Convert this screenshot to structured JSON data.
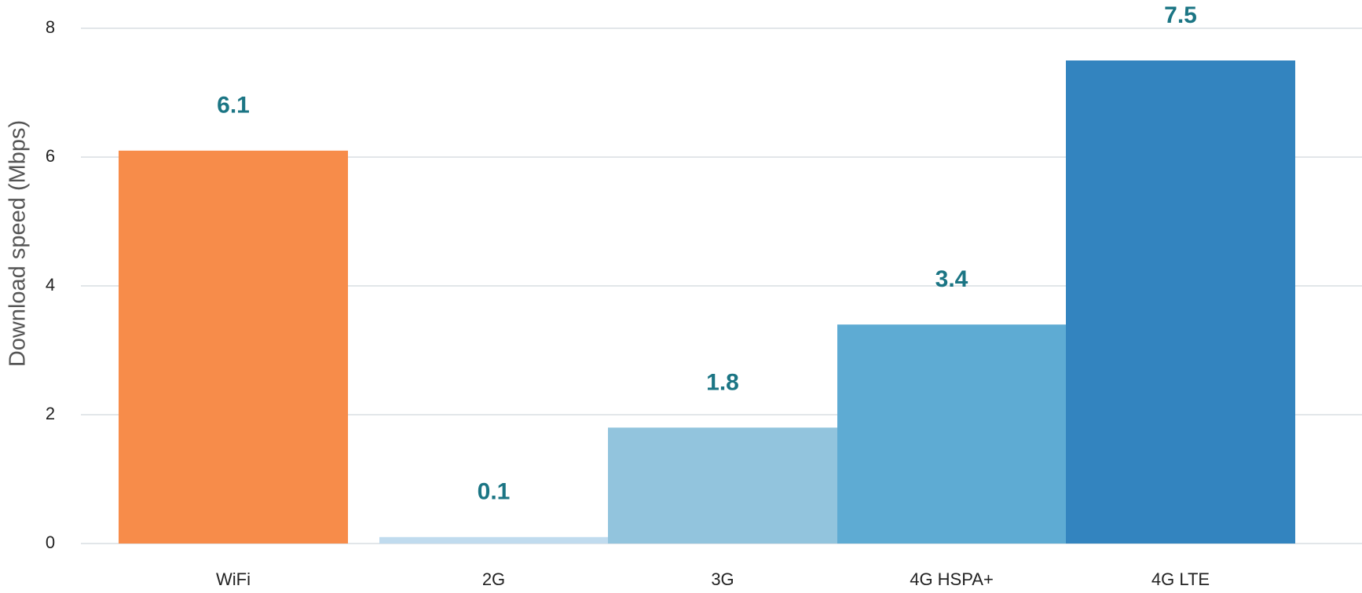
{
  "chart_data": {
    "type": "bar",
    "y_label": "Download speed (Mbps)",
    "categories": [
      "WiFi",
      "2G",
      "3G",
      "4G HSPA+",
      "4G LTE"
    ],
    "values": [
      6.1,
      0.1,
      1.8,
      3.4,
      7.5
    ],
    "colors": [
      "#f78c4a",
      "#c0dbee",
      "#92c4dd",
      "#5eabd3",
      "#3384bf"
    ],
    "label_color": "#1b7584",
    "ylim": [
      0,
      8
    ],
    "yticks": [
      0,
      2,
      4,
      6,
      8
    ],
    "grid": true
  }
}
